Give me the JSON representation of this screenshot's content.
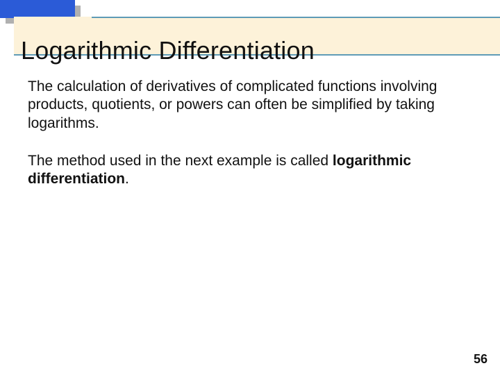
{
  "slide": {
    "title": "Logarithmic Differentiation",
    "paragraph1": "The calculation of derivatives of complicated functions involving products, quotients, or powers can often be simplified by taking logarithms.",
    "paragraph2_prefix": "The method used in the next example is called ",
    "paragraph2_bold": "logarithmic differentiation",
    "paragraph2_suffix": ".",
    "page_number": "56"
  },
  "style": {
    "title_fontsize": 36,
    "body_fontsize": 21,
    "pagenum_fontsize": 18,
    "colors": {
      "cream_bg": "#fdf2d9",
      "rule": "#5e9bb6",
      "corner_front": "#2b5bd7",
      "corner_shadow": "#b0b0b0",
      "text": "#111111",
      "background": "#ffffff"
    }
  }
}
